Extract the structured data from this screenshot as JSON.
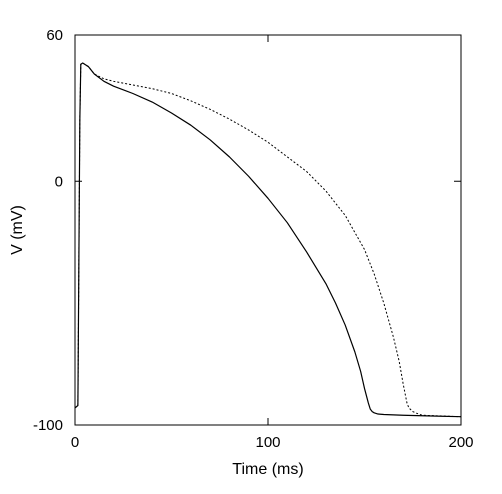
{
  "chart_data": {
    "type": "line",
    "title": "",
    "xlabel": "Time (ms)",
    "ylabel": "V (mV)",
    "xlim": [
      0,
      200
    ],
    "ylim": [
      -100,
      60
    ],
    "x_ticks": [
      0,
      100,
      200
    ],
    "y_ticks": [
      60,
      0,
      -100
    ],
    "x_tick_labels": [
      "0",
      "100",
      "200"
    ],
    "y_tick_labels": [
      "60",
      "0",
      "-100"
    ],
    "grid": false,
    "legend": "none",
    "series": [
      {
        "style": "solid",
        "color": "#000000",
        "x": [
          0,
          1.5,
          2.5,
          3,
          4,
          5,
          7,
          10,
          15,
          20,
          30,
          40,
          50,
          60,
          70,
          80,
          90,
          100,
          110,
          120,
          130,
          135,
          140,
          145,
          148,
          150,
          152,
          153,
          154,
          155,
          157,
          160,
          170,
          180,
          190,
          200
        ],
        "y": [
          -93,
          -92,
          25,
          48,
          48.5,
          48,
          47,
          44,
          41,
          39,
          36,
          32.5,
          28,
          23,
          17,
          10,
          2,
          -7,
          -17,
          -29,
          -42,
          -50,
          -59,
          -70,
          -78,
          -85,
          -91,
          -93.5,
          -94.5,
          -95,
          -95.5,
          -95.7,
          -96,
          -96.2,
          -96.4,
          -96.6
        ]
      },
      {
        "style": "dashed",
        "color": "#000000",
        "x": [
          0,
          1.5,
          2.5,
          3,
          4,
          5,
          7,
          10,
          15,
          20,
          30,
          40,
          50,
          60,
          70,
          80,
          90,
          100,
          110,
          120,
          130,
          140,
          150,
          155,
          160,
          165,
          168,
          170,
          172,
          173,
          175,
          178,
          180,
          190,
          200
        ],
        "y": [
          -93,
          -92,
          25,
          48,
          48.5,
          48,
          47,
          44,
          42,
          41,
          39.5,
          38,
          36,
          33,
          29.5,
          25.5,
          21,
          16,
          10,
          4,
          -4,
          -14,
          -28,
          -38,
          -50,
          -64,
          -74,
          -83,
          -91,
          -93,
          -94.5,
          -95.5,
          -96,
          -96.3,
          -96.6
        ]
      }
    ]
  }
}
